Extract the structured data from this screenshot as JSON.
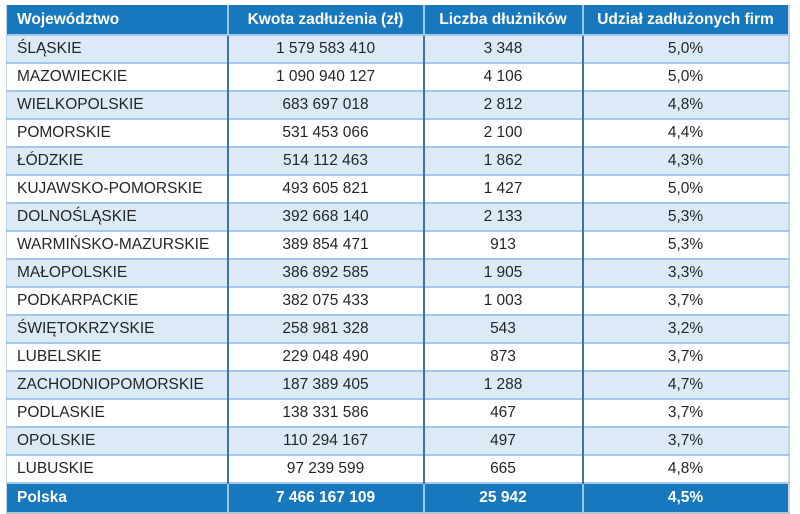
{
  "chart_data": {
    "type": "table",
    "columns": [
      "Województwo",
      "Kwota zadłużenia (zł)",
      "Liczba dłużników",
      "Udział zadłużonych firm"
    ],
    "rows": [
      [
        "ŚLĄSKIE",
        "1 579 583 410",
        "3 348",
        "5,0%"
      ],
      [
        "MAZOWIECKIE",
        "1 090 940 127",
        "4 106",
        "5,0%"
      ],
      [
        "WIELKOPOLSKIE",
        "683 697 018",
        "2 812",
        "4,8%"
      ],
      [
        "POMORSKIE",
        "531 453 066",
        "2 100",
        "4,4%"
      ],
      [
        "ŁÓDZKIE",
        "514 112 463",
        "1 862",
        "4,3%"
      ],
      [
        "KUJAWSKO-POMORSKIE",
        "493 605 821",
        "1 427",
        "5,0%"
      ],
      [
        "DOLNOŚLĄSKIE",
        "392 668 140",
        "2 133",
        "5,3%"
      ],
      [
        "WARMIŃSKO-MAZURSKIE",
        "389 854 471",
        "913",
        "5,3%"
      ],
      [
        "MAŁOPOLSKIE",
        "386 892 585",
        "1 905",
        "3,3%"
      ],
      [
        "PODKARPACKIE",
        "382 075 433",
        "1 003",
        "3,7%"
      ],
      [
        "ŚWIĘTOKRZYSKIE",
        "258 981 328",
        "543",
        "3,2%"
      ],
      [
        "LUBELSKIE",
        "229 048 490",
        "873",
        "3,7%"
      ],
      [
        "ZACHODNIOPOMORSKIE",
        "187 389 405",
        "1 288",
        "4,7%"
      ],
      [
        "PODLASKIE",
        "138 331 586",
        "467",
        "3,7%"
      ],
      [
        "OPOLSKIE",
        "110 294 167",
        "497",
        "3,7%"
      ],
      [
        "LUBUSKIE",
        "97 239 599",
        "665",
        "4,8%"
      ]
    ],
    "total_row": [
      "Polska",
      "7 466 167 109",
      "25 942",
      "4,5%"
    ],
    "layout_hints": {
      "striped": true,
      "odd_rows_highlighted": true,
      "total_row_style": "header-colored"
    }
  },
  "colors": {
    "header_bg": "#1878be",
    "header_text": "#ffffff",
    "row_alt_bg": "#dce9f6",
    "row_bg": "#ffffff",
    "row_divider": "#a5c8e8",
    "col_divider": "#3f72a0",
    "header_divider": "#9cc7ec",
    "total_bg": "#1878be",
    "total_text": "#ffffff",
    "body_text": "#262626"
  }
}
